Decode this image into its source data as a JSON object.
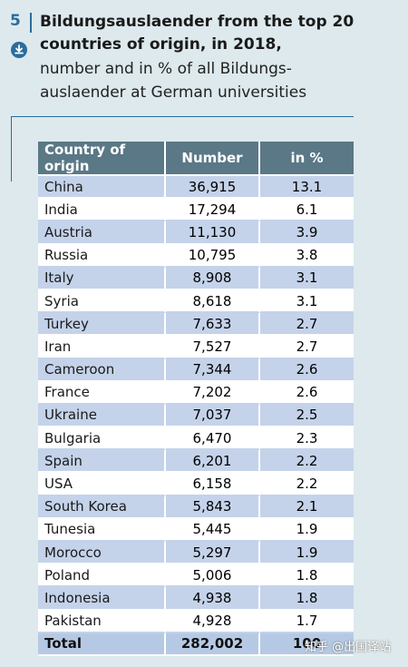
{
  "figure": {
    "number": "5",
    "title_line1": "Bildungsauslaender from the top 20",
    "title_line2": "countries of origin, in 2018,",
    "subtitle_line1": "number and in % of all Bildungs-",
    "subtitle_line2": "auslaender at German universities",
    "icons": {
      "download": "download-icon"
    },
    "colors": {
      "accent": "#2a6d9e",
      "header_bg": "#5a7886",
      "row_alt": "#c4d3ea",
      "background": "#dde9ec"
    }
  },
  "chart_data": {
    "type": "table",
    "columns": [
      "Country of origin",
      "Number",
      "in %"
    ],
    "rows": [
      [
        "China",
        "36,915",
        "13.1"
      ],
      [
        "India",
        "17,294",
        "6.1"
      ],
      [
        "Austria",
        "11,130",
        "3.9"
      ],
      [
        "Russia",
        "10,795",
        "3.8"
      ],
      [
        "Italy",
        "8,908",
        "3.1"
      ],
      [
        "Syria",
        "8,618",
        "3.1"
      ],
      [
        "Turkey",
        "7,633",
        "2.7"
      ],
      [
        "Iran",
        "7,527",
        "2.7"
      ],
      [
        "Cameroon",
        "7,344",
        "2.6"
      ],
      [
        "France",
        "7,202",
        "2.6"
      ],
      [
        "Ukraine",
        "7,037",
        "2.5"
      ],
      [
        "Bulgaria",
        "6,470",
        "2.3"
      ],
      [
        "Spain",
        "6,201",
        "2.2"
      ],
      [
        "USA",
        "6,158",
        "2.2"
      ],
      [
        "South Korea",
        "5,843",
        "2.1"
      ],
      [
        "Tunesia",
        "5,445",
        "1.9"
      ],
      [
        "Morocco",
        "5,297",
        "1.9"
      ],
      [
        "Poland",
        "5,006",
        "1.8"
      ],
      [
        "Indonesia",
        "4,938",
        "1.8"
      ],
      [
        "Pakistan",
        "4,928",
        "1.7"
      ]
    ],
    "total": [
      "Total",
      "282,002",
      "100"
    ]
  },
  "watermark": {
    "text": "知乎 @出国译站"
  }
}
